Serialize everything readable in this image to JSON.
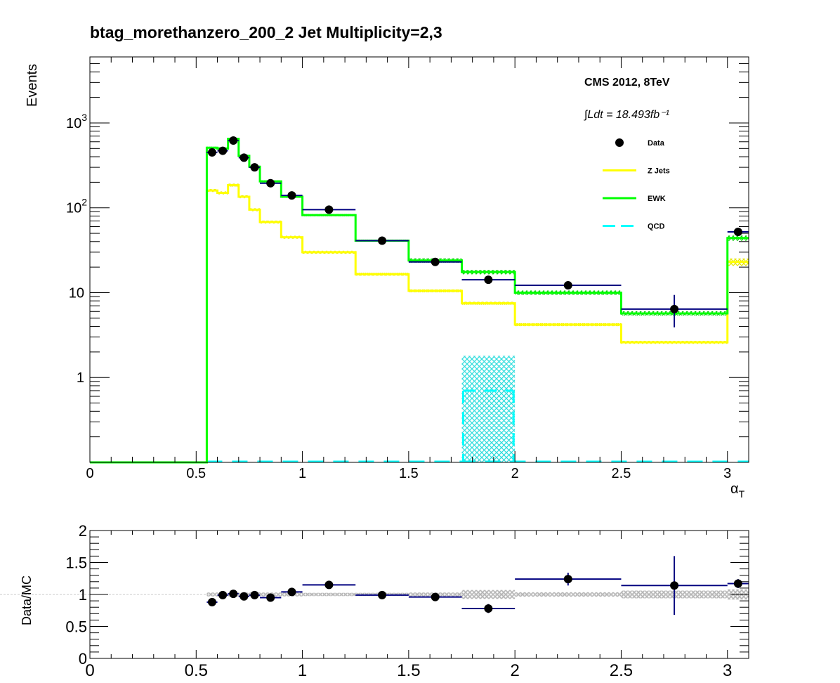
{
  "title": "btag_morethanzero_200_2    Jet Multiplicity=2,3",
  "chart_data": [
    {
      "type": "line",
      "panel": "main",
      "title": "btag_morethanzero_200_2    Jet Multiplicity=2,3",
      "xlabel": "α_T",
      "ylabel": "Events",
      "xlim": [
        0,
        3.1
      ],
      "ylim": [
        0.1,
        6000
      ],
      "y_scale": "log",
      "x_ticks": [
        "0",
        "0.5",
        "1",
        "1.5",
        "2",
        "2.5",
        "3"
      ],
      "y_ticks": [
        "1",
        "10",
        "10^2",
        "10^3"
      ],
      "annotation": "CMS 2012, 8TeV",
      "lumi_text": "∫Ldt = 18.493fb⁻¹",
      "legend_position": "top-right",
      "bin_edges": [
        0,
        0.55,
        0.6,
        0.65,
        0.7,
        0.75,
        0.8,
        0.9,
        1.0,
        1.25,
        1.5,
        1.75,
        2.0,
        2.5,
        3.0,
        3.1
      ],
      "series": [
        {
          "name": "Data",
          "kind": "points",
          "color": "#000000",
          "points": [
            {
              "x": 0.575,
              "y": 450,
              "xerr": 0.025
            },
            {
              "x": 0.625,
              "y": 470,
              "xerr": 0.025
            },
            {
              "x": 0.675,
              "y": 620,
              "xerr": 0.025
            },
            {
              "x": 0.725,
              "y": 390,
              "xerr": 0.025
            },
            {
              "x": 0.775,
              "y": 300,
              "xerr": 0.025
            },
            {
              "x": 0.85,
              "y": 195,
              "xerr": 0.05
            },
            {
              "x": 0.95,
              "y": 140,
              "xerr": 0.05
            },
            {
              "x": 1.125,
              "y": 95,
              "xerr": 0.125
            },
            {
              "x": 1.375,
              "y": 41,
              "xerr": 0.125
            },
            {
              "x": 1.625,
              "y": 23,
              "xerr": 0.125
            },
            {
              "x": 1.875,
              "y": 14.2,
              "xerr": 0.125
            },
            {
              "x": 2.25,
              "y": 12.2,
              "xerr": 0.25
            },
            {
              "x": 2.75,
              "y": 6.4,
              "xerr": 0.25,
              "yerr_low": 2.5,
              "yerr_high": 3.0
            },
            {
              "x": 3.05,
              "y": 52,
              "xerr": 0.05
            }
          ]
        },
        {
          "name": "Z Jets",
          "kind": "step",
          "color": "#ffff00",
          "values": [
            0.1,
            160,
            150,
            185,
            135,
            95,
            68,
            45,
            30,
            16.5,
            10.5,
            7.5,
            4.2,
            2.6,
            23
          ]
        },
        {
          "name": "EWK",
          "kind": "step",
          "color": "#00ff00",
          "values": [
            0.1,
            510,
            500,
            650,
            410,
            305,
            205,
            135,
            82,
            41,
            24,
            17.5,
            10,
            5.7,
            44
          ]
        },
        {
          "name": "QCD",
          "kind": "dashed-step",
          "color": "#00ffff",
          "values": [
            0.1,
            0.1,
            0.1,
            0.1,
            0.1,
            0.1,
            0.1,
            0.1,
            0.1,
            0.1,
            0.1,
            0.1,
            0.1,
            0.1,
            0.1
          ],
          "uncertainty_band": {
            "x_range": [
              1.75,
              2.0
            ],
            "low": 0.1,
            "high": 1.8,
            "center": 0.7
          }
        }
      ]
    },
    {
      "type": "scatter",
      "panel": "ratio",
      "xlabel": "",
      "ylabel": "Data/MC",
      "xlim": [
        0,
        3.1
      ],
      "ylim": [
        0,
        2
      ],
      "x_ticks": [
        "0",
        "0.5",
        "1",
        "1.5",
        "2",
        "2.5",
        "3"
      ],
      "y_ticks": [
        "0",
        "0.5",
        "1",
        "1.5",
        "2"
      ],
      "reference_line": 1,
      "mc_uncertainty_band": [
        {
          "x_range": [
            0.55,
            1.0
          ],
          "half_width": 0.03
        },
        {
          "x_range": [
            1.0,
            1.5
          ],
          "half_width": 0.025
        },
        {
          "x_range": [
            1.5,
            1.75
          ],
          "half_width": 0.03
        },
        {
          "x_range": [
            1.75,
            2.0
          ],
          "half_width": 0.07
        },
        {
          "x_range": [
            2.0,
            2.5
          ],
          "half_width": 0.035
        },
        {
          "x_range": [
            2.5,
            3.0
          ],
          "half_width": 0.06
        },
        {
          "x_range": [
            3.0,
            3.1
          ],
          "half_width": 0.08
        }
      ],
      "series": [
        {
          "name": "Data/MC",
          "color": "#000000",
          "points": [
            {
              "x": 0.575,
              "y": 0.88,
              "xerr": 0.025,
              "yerr": 0.04
            },
            {
              "x": 0.625,
              "y": 0.99,
              "xerr": 0.025,
              "yerr": 0.04
            },
            {
              "x": 0.675,
              "y": 1.01,
              "xerr": 0.025,
              "yerr": 0.04
            },
            {
              "x": 0.725,
              "y": 0.97,
              "xerr": 0.025,
              "yerr": 0.04
            },
            {
              "x": 0.775,
              "y": 0.99,
              "xerr": 0.025,
              "yerr": 0.04
            },
            {
              "x": 0.85,
              "y": 0.95,
              "xerr": 0.05,
              "yerr": 0.04
            },
            {
              "x": 0.95,
              "y": 1.04,
              "xerr": 0.05,
              "yerr": 0.04
            },
            {
              "x": 1.125,
              "y": 1.15,
              "xerr": 0.125,
              "yerr": 0.04
            },
            {
              "x": 1.375,
              "y": 0.99,
              "xerr": 0.125,
              "yerr": 0.04
            },
            {
              "x": 1.625,
              "y": 0.96,
              "xerr": 0.125,
              "yerr": 0.06
            },
            {
              "x": 1.875,
              "y": 0.78,
              "xerr": 0.125,
              "yerr": 0.07
            },
            {
              "x": 2.25,
              "y": 1.24,
              "xerr": 0.25,
              "yerr": 0.1
            },
            {
              "x": 2.75,
              "y": 1.14,
              "xerr": 0.25,
              "yerr": 0.46
            },
            {
              "x": 3.05,
              "y": 1.17,
              "xerr": 0.05,
              "yerr": 0.07
            }
          ]
        }
      ]
    }
  ]
}
